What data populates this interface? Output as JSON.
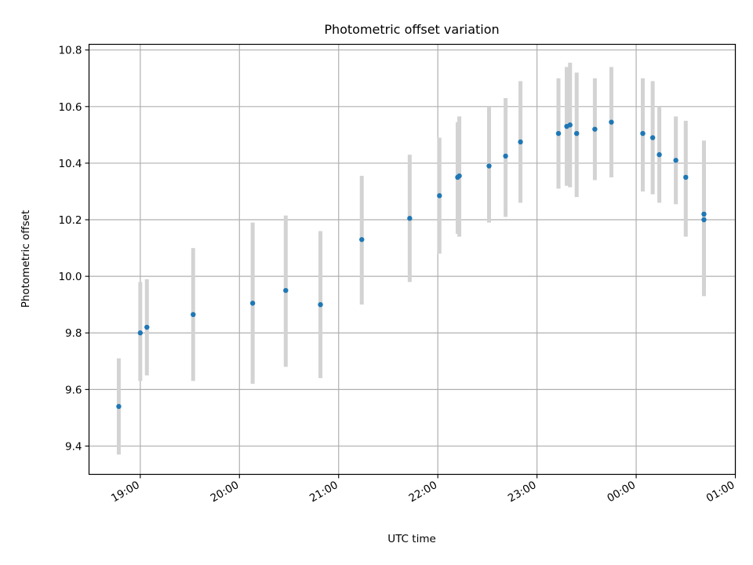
{
  "chart_data": {
    "type": "scatter",
    "title": "Photometric offset variation",
    "xlabel": "UTC time",
    "ylabel": "Photometric offset",
    "xlim": [
      "18:29",
      "01:00"
    ],
    "ylim": [
      9.3,
      10.82
    ],
    "grid": true,
    "x_ticks": [
      "19:00",
      "20:00",
      "21:00",
      "22:00",
      "23:00",
      "00:00",
      "01:00"
    ],
    "y_ticks": [
      "9.4",
      "9.6",
      "9.8",
      "10.0",
      "10.2",
      "10.4",
      "10.6",
      "10.8"
    ],
    "point_color": "#1f77b4",
    "errorbar_color": "#d3d3d3",
    "points": [
      {
        "x": "18:47",
        "y": 9.54,
        "ylow": 9.37,
        "yhigh": 9.71
      },
      {
        "x": "19:00",
        "y": 9.8,
        "ylow": 9.63,
        "yhigh": 9.98
      },
      {
        "x": "19:04",
        "y": 9.82,
        "ylow": 9.65,
        "yhigh": 9.99
      },
      {
        "x": "19:32",
        "y": 9.865,
        "ylow": 9.63,
        "yhigh": 10.1
      },
      {
        "x": "20:08",
        "y": 9.905,
        "ylow": 9.62,
        "yhigh": 10.19
      },
      {
        "x": "20:28",
        "y": 9.95,
        "ylow": 9.68,
        "yhigh": 10.215
      },
      {
        "x": "20:49",
        "y": 9.9,
        "ylow": 9.64,
        "yhigh": 10.16
      },
      {
        "x": "21:14",
        "y": 10.13,
        "ylow": 9.9,
        "yhigh": 10.355
      },
      {
        "x": "21:43",
        "y": 10.205,
        "ylow": 9.98,
        "yhigh": 10.43
      },
      {
        "x": "22:01",
        "y": 10.285,
        "ylow": 10.08,
        "yhigh": 10.49
      },
      {
        "x": "22:12",
        "y": 10.35,
        "ylow": 10.15,
        "yhigh": 10.545
      },
      {
        "x": "22:13",
        "y": 10.355,
        "ylow": 10.14,
        "yhigh": 10.565
      },
      {
        "x": "22:31",
        "y": 10.39,
        "ylow": 10.19,
        "yhigh": 10.6
      },
      {
        "x": "22:41",
        "y": 10.425,
        "ylow": 10.21,
        "yhigh": 10.63
      },
      {
        "x": "22:50",
        "y": 10.475,
        "ylow": 10.26,
        "yhigh": 10.69
      },
      {
        "x": "23:13",
        "y": 10.505,
        "ylow": 10.31,
        "yhigh": 10.7
      },
      {
        "x": "23:18",
        "y": 10.53,
        "ylow": 10.32,
        "yhigh": 10.74
      },
      {
        "x": "23:20",
        "y": 10.535,
        "ylow": 10.315,
        "yhigh": 10.755
      },
      {
        "x": "23:24",
        "y": 10.505,
        "ylow": 10.28,
        "yhigh": 10.72
      },
      {
        "x": "23:35",
        "y": 10.52,
        "ylow": 10.34,
        "yhigh": 10.7
      },
      {
        "x": "23:45",
        "y": 10.545,
        "ylow": 10.35,
        "yhigh": 10.74
      },
      {
        "x": "00:04",
        "y": 10.505,
        "ylow": 10.3,
        "yhigh": 10.7
      },
      {
        "x": "00:10",
        "y": 10.49,
        "ylow": 10.29,
        "yhigh": 10.69
      },
      {
        "x": "00:14",
        "y": 10.43,
        "ylow": 10.26,
        "yhigh": 10.6
      },
      {
        "x": "00:24",
        "y": 10.41,
        "ylow": 10.255,
        "yhigh": 10.565
      },
      {
        "x": "00:30",
        "y": 10.35,
        "ylow": 10.14,
        "yhigh": 10.55
      },
      {
        "x": "00:41",
        "y": 10.22,
        "ylow": 9.96,
        "yhigh": 10.48
      },
      {
        "x": "00:41",
        "y": 10.2,
        "ylow": 9.93,
        "yhigh": 10.46
      }
    ]
  }
}
